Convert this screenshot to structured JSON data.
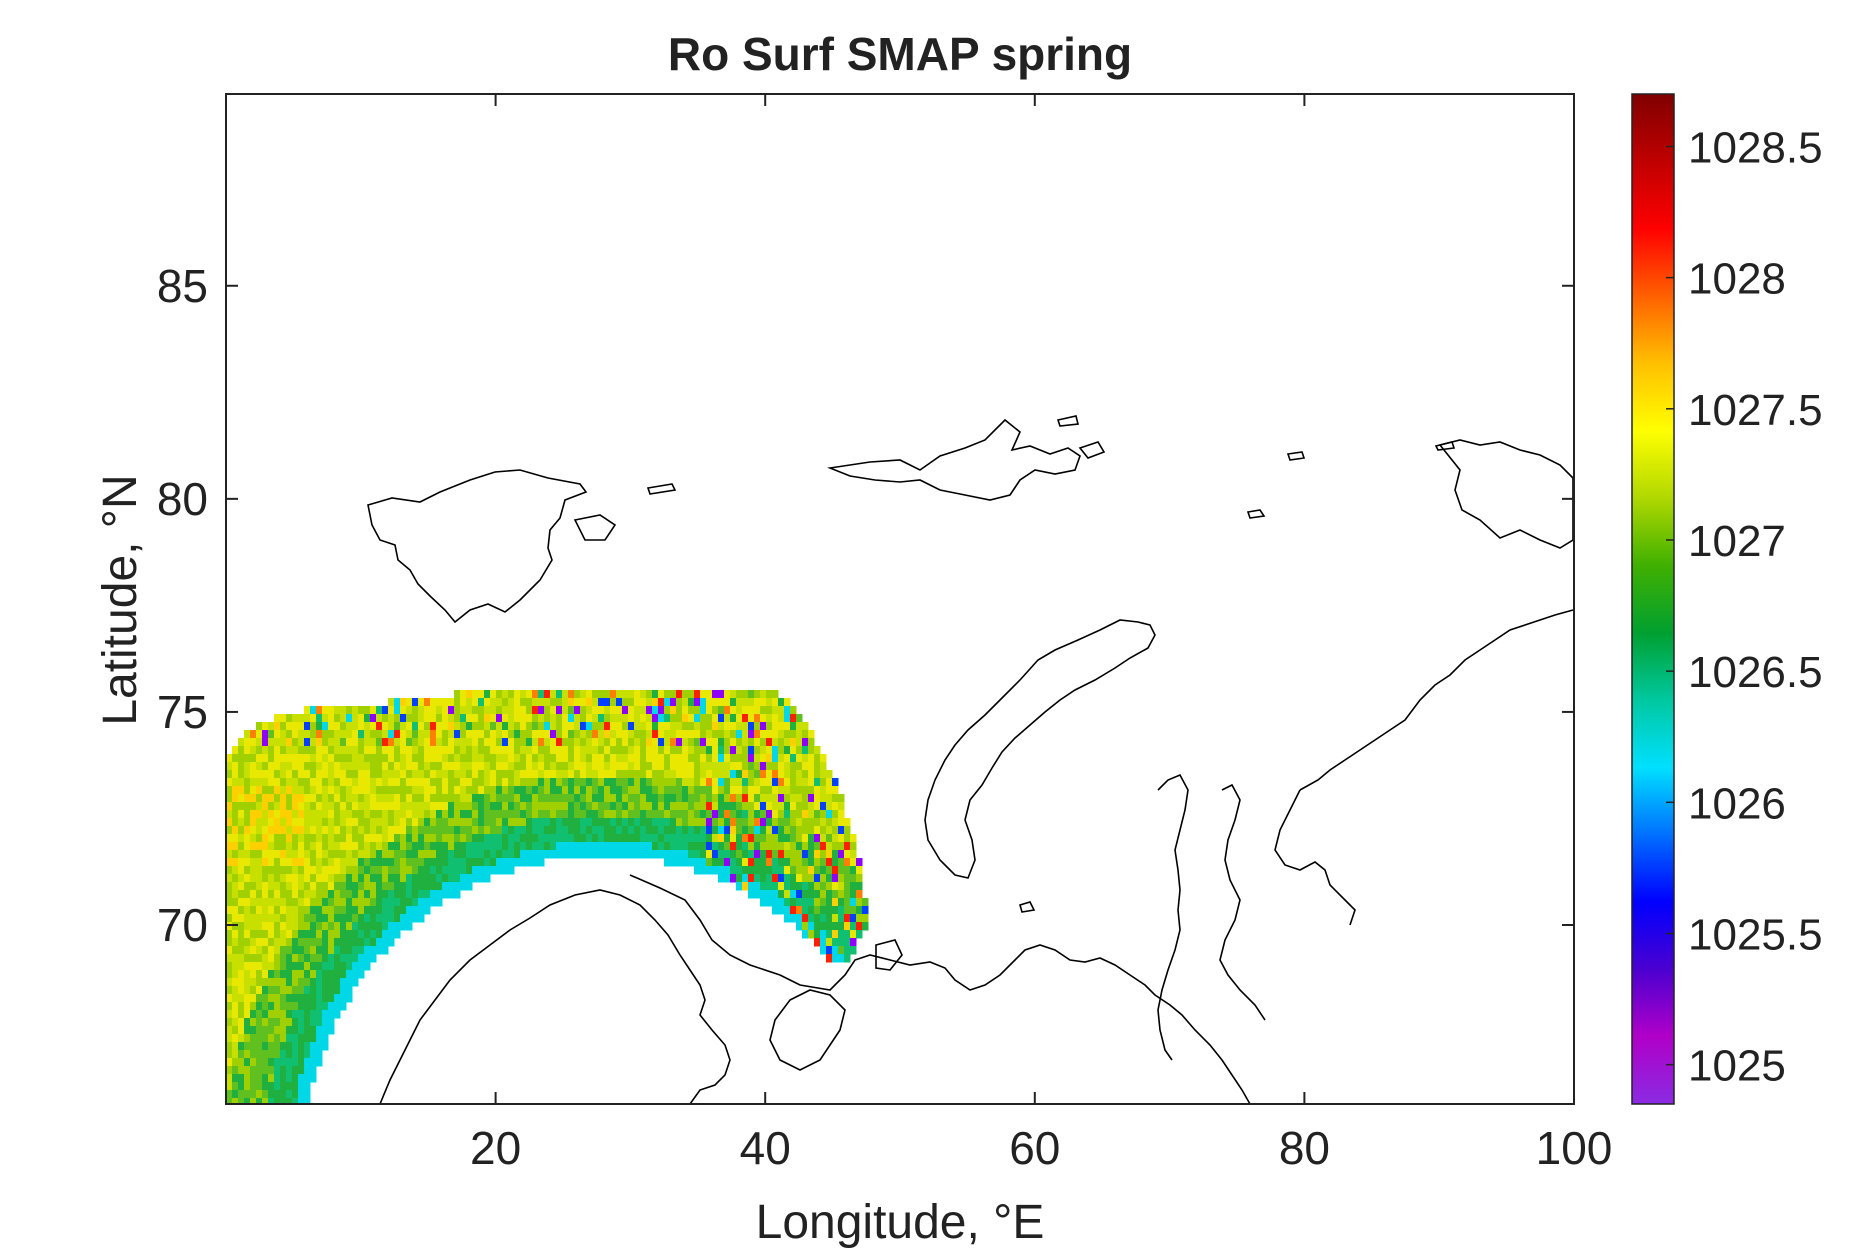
{
  "chart_data": {
    "type": "heatmap",
    "title": "Ro Surf SMAP spring",
    "xlabel": "Longitude, °E",
    "ylabel": "Latitude, °N",
    "xlim": [
      0,
      100
    ],
    "ylim": [
      65.8,
      89.5
    ],
    "xticks": [
      "20",
      "40",
      "60",
      "80",
      "100"
    ],
    "xtick_values": [
      20,
      40,
      60,
      80,
      100
    ],
    "yticks": [
      "70",
      "75",
      "80",
      "85"
    ],
    "ytick_values": [
      70,
      75,
      80,
      85
    ],
    "colorbar": {
      "min": 1024.85,
      "max": 1028.7,
      "ticks": [
        "1025",
        "1025.5",
        "1026",
        "1026.5",
        "1027",
        "1027.5",
        "1028",
        "1028.5"
      ],
      "tick_values": [
        1025,
        1025.5,
        1026,
        1026.5,
        1027,
        1027.5,
        1028,
        1028.5
      ],
      "colormap": "jet",
      "colors": [
        "#8a2be2",
        "#b000c8",
        "#4b00d0",
        "#0000ff",
        "#0070ff",
        "#00e0ff",
        "#00c8a0",
        "#00a030",
        "#40b000",
        "#b0d800",
        "#ffff00",
        "#ffc000",
        "#ff6000",
        "#ff0000",
        "#c00000",
        "#800000"
      ]
    },
    "data_region": {
      "description_colors": {
        "open_water": "#c8e000",
        "near_coast_band": "#10c070",
        "coastal_edge": "#00d8e8",
        "ice_edge_fringe": "#ff8000",
        "low_values": "#9000ff"
      }
    },
    "grid": false,
    "legend": "colorbar-right"
  }
}
